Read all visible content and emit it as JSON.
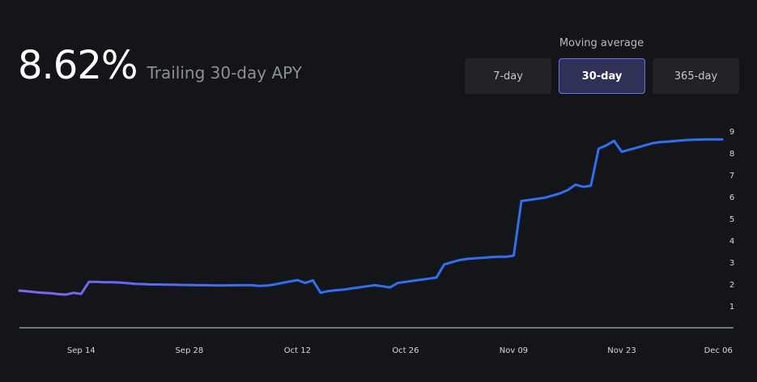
{
  "headline": {
    "value": "8.62%",
    "caption": "Trailing 30-day APY"
  },
  "moving_average": {
    "label": "Moving average",
    "options": [
      {
        "label": "7-day",
        "active": false
      },
      {
        "label": "30-day",
        "active": true
      },
      {
        "label": "365-day",
        "active": false
      }
    ]
  },
  "colors": {
    "background": "#141519",
    "line_start": "#8a63f2",
    "line_end": "#2f6ff2",
    "active_border": "#6a73e8",
    "baseline": "#8d93a6"
  },
  "chart_data": {
    "type": "line",
    "x_tick_labels": [
      "Sep 14",
      "Sep 28",
      "Oct 12",
      "Oct 26",
      "Nov 09",
      "Nov 23",
      "Dec 06"
    ],
    "y_tick_labels": [
      "1",
      "2",
      "3",
      "4",
      "5",
      "6",
      "7",
      "8",
      "9"
    ],
    "ylim": [
      0,
      9
    ],
    "x_range": [
      "2023-09-06",
      "2023-12-06"
    ],
    "grid": false,
    "series": [
      {
        "x": [
          "2023-09-06",
          "2023-09-07",
          "2023-09-08",
          "2023-09-09",
          "2023-09-10",
          "2023-09-11",
          "2023-09-12",
          "2023-09-13",
          "2023-09-14",
          "2023-09-15",
          "2023-09-16",
          "2023-09-17",
          "2023-09-18",
          "2023-09-19",
          "2023-09-20",
          "2023-09-21",
          "2023-09-22",
          "2023-09-23",
          "2023-09-24",
          "2023-09-25",
          "2023-09-26",
          "2023-09-27",
          "2023-09-28",
          "2023-09-29",
          "2023-09-30",
          "2023-10-01",
          "2023-10-02",
          "2023-10-03",
          "2023-10-04",
          "2023-10-05",
          "2023-10-06",
          "2023-10-07",
          "2023-10-08",
          "2023-10-09",
          "2023-10-10",
          "2023-10-11",
          "2023-10-12",
          "2023-10-13",
          "2023-10-14",
          "2023-10-15",
          "2023-10-16",
          "2023-10-17",
          "2023-10-18",
          "2023-10-19",
          "2023-10-20",
          "2023-10-21",
          "2023-10-22",
          "2023-10-23",
          "2023-10-24",
          "2023-10-25",
          "2023-10-26",
          "2023-10-27",
          "2023-10-28",
          "2023-10-29",
          "2023-10-30",
          "2023-10-31",
          "2023-11-01",
          "2023-11-02",
          "2023-11-03",
          "2023-11-04",
          "2023-11-05",
          "2023-11-06",
          "2023-11-07",
          "2023-11-08",
          "2023-11-09",
          "2023-11-10",
          "2023-11-11",
          "2023-11-12",
          "2023-11-13",
          "2023-11-14",
          "2023-11-15",
          "2023-11-16",
          "2023-11-17",
          "2023-11-18",
          "2023-11-19",
          "2023-11-20",
          "2023-11-21",
          "2023-11-22",
          "2023-11-23",
          "2023-11-24",
          "2023-11-25",
          "2023-11-26",
          "2023-11-27",
          "2023-11-28",
          "2023-11-29",
          "2023-11-30",
          "2023-12-01",
          "2023-12-02",
          "2023-12-03",
          "2023-12-04",
          "2023-12-05",
          "2023-12-06"
        ],
        "values": [
          1.7,
          1.67,
          1.63,
          1.6,
          1.58,
          1.54,
          1.52,
          1.6,
          1.55,
          2.1,
          2.1,
          2.08,
          2.08,
          2.07,
          2.04,
          2.01,
          2.0,
          1.98,
          1.98,
          1.97,
          1.97,
          1.96,
          1.96,
          1.95,
          1.95,
          1.94,
          1.94,
          1.94,
          1.95,
          1.95,
          1.95,
          1.92,
          1.93,
          1.98,
          2.05,
          2.12,
          2.18,
          2.05,
          2.17,
          1.6,
          1.68,
          1.72,
          1.75,
          1.8,
          1.85,
          1.9,
          1.95,
          1.9,
          1.85,
          2.05,
          2.1,
          2.15,
          2.2,
          2.25,
          2.3,
          2.9,
          3.0,
          3.1,
          3.15,
          3.18,
          3.2,
          3.23,
          3.25,
          3.25,
          3.3,
          5.8,
          5.85,
          5.9,
          5.95,
          6.05,
          6.15,
          6.3,
          6.55,
          6.45,
          6.5,
          8.2,
          8.35,
          8.55,
          8.05,
          8.15,
          8.25,
          8.35,
          8.45,
          8.5,
          8.52,
          8.55,
          8.58,
          8.6,
          8.61,
          8.62,
          8.62,
          8.62
        ]
      }
    ]
  }
}
